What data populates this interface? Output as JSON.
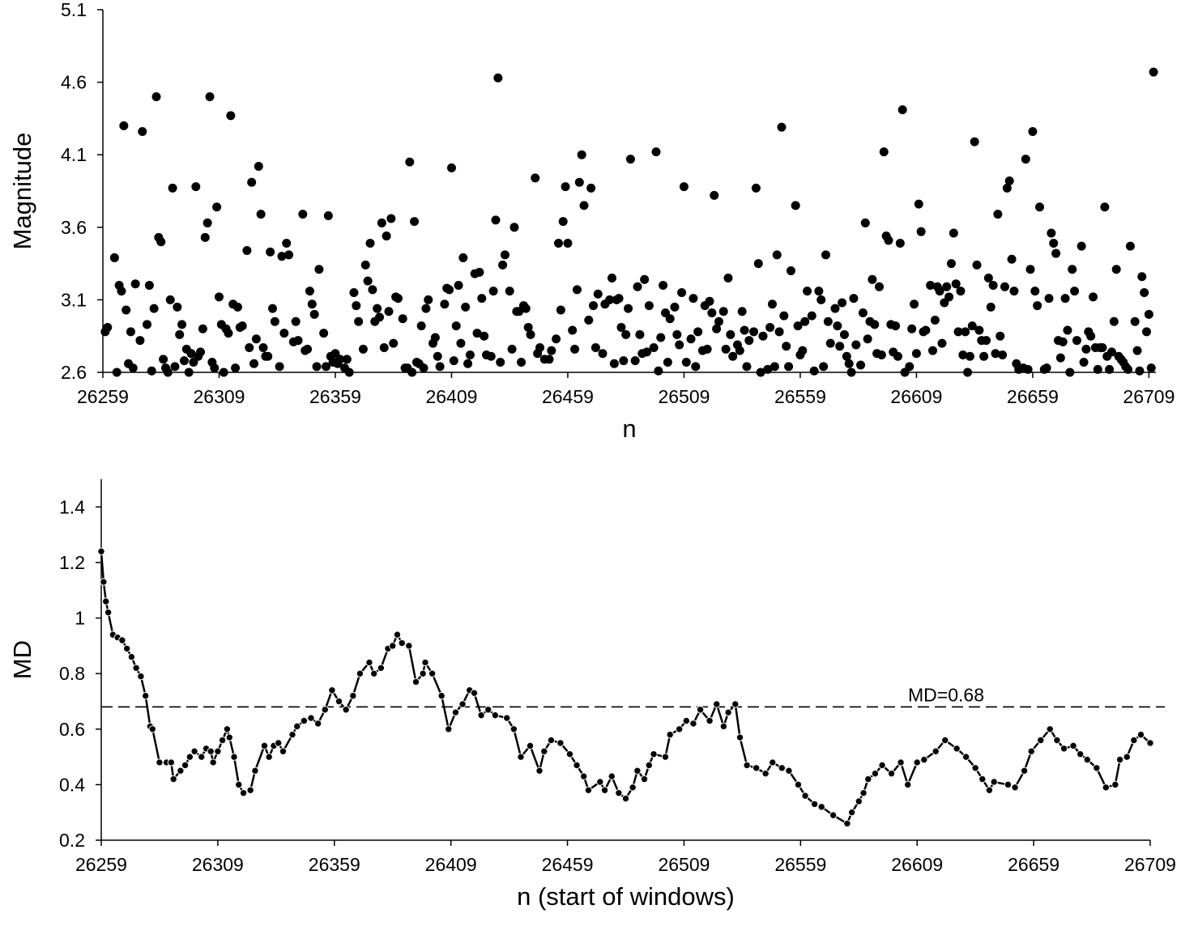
{
  "chart_data": [
    {
      "type": "scatter",
      "xlabel": "n",
      "ylabel": "Magnitude",
      "color": "#000000",
      "xlim": [
        26259,
        26712
      ],
      "ylim": [
        2.6,
        5.1
      ],
      "xticks": [
        26259,
        26309,
        26359,
        26409,
        26459,
        26509,
        26559,
        26609,
        26659,
        26709
      ],
      "yticks": [
        2.6,
        3.1,
        3.6,
        4.1,
        4.6,
        5.1
      ],
      "x": [
        26260,
        26261,
        26264,
        26265,
        26266,
        26267,
        26268,
        26269,
        26270,
        26271,
        26272,
        26273,
        26275,
        26276,
        26278,
        26279,
        26280,
        26281,
        26282,
        26283,
        26284,
        26285,
        26286,
        26287,
        26288,
        26289,
        26290,
        26291,
        26292,
        26293,
        26294,
        26295,
        26296,
        26297,
        26298,
        26299,
        26300,
        26301,
        26302,
        26303,
        26304,
        26305,
        26306,
        26307,
        26308,
        26309,
        26310,
        26311,
        26312,
        26313,
        26314,
        26315,
        26316,
        26317,
        26318,
        26319,
        26321,
        26322,
        26323,
        26324,
        26325,
        26326,
        26327,
        26328,
        26329,
        26330,
        26331,
        26332,
        26333,
        26335,
        26336,
        26337,
        26338,
        26339,
        26341,
        26342,
        26343,
        26345,
        26346,
        26347,
        26348,
        26349,
        26350,
        26351,
        26352,
        26354,
        26355,
        26356,
        26357,
        26358,
        26359,
        26360,
        26361,
        26363,
        26364,
        26365,
        26367,
        26368,
        26369,
        26371,
        26372,
        26373,
        26374,
        26375,
        26376,
        26377,
        26378,
        26379,
        26380,
        26381,
        26382,
        26383,
        26384,
        26385,
        26386,
        26388,
        26389,
        26390,
        26391,
        26392,
        26393,
        26394,
        26395,
        26396,
        26397,
        26398,
        26399,
        26401,
        26402,
        26403,
        26404,
        26406,
        26407,
        26408,
        26409,
        26410,
        26411,
        26412,
        26413,
        26414,
        26415,
        26416,
        26417,
        26419,
        26420,
        26421,
        26422,
        26423,
        26424,
        26426,
        26427,
        26428,
        26429,
        26430,
        26431,
        26432,
        26434,
        26435,
        26436,
        26437,
        26438,
        26439,
        26440,
        26441,
        26442,
        26443,
        26445,
        26446,
        26447,
        26449,
        26451,
        26452,
        26454,
        26455,
        26456,
        26457,
        26458,
        26459,
        26461,
        26462,
        26463,
        26464,
        26465,
        26466,
        26468,
        26469,
        26470,
        26471,
        26472,
        26474,
        26475,
        26477,
        26478,
        26479,
        26480,
        26481,
        26482,
        26483,
        26484,
        26485,
        26486,
        26488,
        26489,
        26490,
        26491,
        26492,
        26493,
        26494,
        26496,
        26497,
        26498,
        26499,
        26500,
        26501,
        26502,
        26503,
        26505,
        26506,
        26507,
        26508,
        26509,
        26510,
        26512,
        26513,
        26514,
        26515,
        26517,
        26518,
        26519,
        26520,
        26521,
        26522,
        26523,
        26524,
        26526,
        26527,
        26528,
        26529,
        26530,
        26532,
        26533,
        26534,
        26535,
        26536,
        26537,
        26539,
        26540,
        26541,
        26542,
        26543,
        26545,
        26546,
        26547,
        26548,
        26549,
        26550,
        26551,
        26552,
        26553,
        26554,
        26555,
        26557,
        26558,
        26559,
        26560,
        26561,
        26562,
        26564,
        26565,
        26567,
        26568,
        26569,
        26570,
        26571,
        26572,
        26574,
        26575,
        26576,
        26577,
        26578,
        26579,
        26580,
        26581,
        26582,
        26583,
        26585,
        26586,
        26587,
        26588,
        26589,
        26590,
        26591,
        26592,
        26593,
        26594,
        26595,
        26596,
        26597,
        26598,
        26599,
        26600,
        26601,
        26602,
        26603,
        26604,
        26606,
        26607,
        26608,
        26609,
        26610,
        26611,
        26612,
        26613,
        26615,
        26616,
        26617,
        26618,
        26619,
        26620,
        26621,
        26622,
        26623,
        26624,
        26625,
        26626,
        26627,
        26628,
        26629,
        26630,
        26631,
        26632,
        26633,
        26634,
        26635,
        26636,
        26637,
        26638,
        26639,
        26640,
        26641,
        26642,
        26643,
        26644,
        26645,
        26646,
        26647,
        26648,
        26649,
        26650,
        26651,
        26652,
        26653,
        26655,
        26656,
        26657,
        26658,
        26659,
        26660,
        26661,
        26662,
        26664,
        26665,
        26666,
        26667,
        26668,
        26669,
        26670,
        26671,
        26672,
        26673,
        26674,
        26675,
        26676,
        26677,
        26678,
        26680,
        26681,
        26682,
        26683,
        26684,
        26685,
        26686,
        26687,
        26688,
        26689,
        26690,
        26691,
        26692,
        26693,
        26694,
        26695,
        26696,
        26697,
        26698,
        26699,
        26700,
        26701,
        26703,
        26704,
        26705,
        26706,
        26707,
        26708,
        26709,
        26710,
        26711
      ],
      "y": [
        2.88,
        2.91,
        3.39,
        2.6,
        3.2,
        3.16,
        4.3,
        3.03,
        2.66,
        2.88,
        2.63,
        3.21,
        2.82,
        4.26,
        2.93,
        3.2,
        2.61,
        3.04,
        4.5,
        3.53,
        3.5,
        2.69,
        2.63,
        2.6,
        3.1,
        3.87,
        2.64,
        3.05,
        2.86,
        2.93,
        2.68,
        2.76,
        2.6,
        2.73,
        2.67,
        3.88,
        2.71,
        2.74,
        2.9,
        3.53,
        3.63,
        4.5,
        2.67,
        2.63,
        3.74,
        3.12,
        2.93,
        2.6,
        2.9,
        2.87,
        4.37,
        3.07,
        2.63,
        3.05,
        2.91,
        2.92,
        3.44,
        2.77,
        3.91,
        2.66,
        2.83,
        4.02,
        3.69,
        2.77,
        2.71,
        2.71,
        3.43,
        3.04,
        2.95,
        2.64,
        3.4,
        2.87,
        3.49,
        3.41,
        2.81,
        2.95,
        2.82,
        3.69,
        2.75,
        2.76,
        3.16,
        3.07,
        3.0,
        2.64,
        3.31,
        2.87,
        2.64,
        3.68,
        2.71,
        2.67,
        2.73,
        2.66,
        2.69,
        2.63,
        2.69,
        2.6,
        3.15,
        3.06,
        2.95,
        2.76,
        3.34,
        3.23,
        3.49,
        3.17,
        2.95,
        3.04,
        2.98,
        3.63,
        2.77,
        3.54,
        3.02,
        3.66,
        2.8,
        3.12,
        3.11,
        2.97,
        2.63,
        2.63,
        4.05,
        2.6,
        3.64,
        2.67,
        2.66,
        2.92,
        2.63,
        3.04,
        3.1,
        2.8,
        2.84,
        2.71,
        2.64,
        3.07,
        3.18,
        3.17,
        4.01,
        2.68,
        2.92,
        3.2,
        2.8,
        3.39,
        3.05,
        2.66,
        2.72,
        3.28,
        2.87,
        3.29,
        3.11,
        2.85,
        2.72,
        2.71,
        3.16,
        3.65,
        4.63,
        2.67,
        3.34,
        3.41,
        3.16,
        2.76,
        3.6,
        3.02,
        3.02,
        2.67,
        3.06,
        3.04,
        2.91,
        2.86,
        3.94,
        2.73,
        2.77,
        2.69,
        2.69,
        2.75,
        2.83,
        3.49,
        3.03,
        3.64,
        3.88,
        3.49,
        2.89,
        2.76,
        3.17,
        3.91,
        4.1,
        3.75,
        2.96,
        3.87,
        3.06,
        2.77,
        3.14,
        2.73,
        3.07,
        3.1,
        3.25,
        2.66,
        3.1,
        3.11,
        2.91,
        2.68,
        2.86,
        3.04,
        4.07,
        2.68,
        3.19,
        2.86,
        2.73,
        3.24,
        2.74,
        3.06,
        2.77,
        4.12,
        2.61,
        2.84,
        3.2,
        3.01,
        2.67,
        2.97,
        3.05,
        2.86,
        2.79,
        3.15,
        3.88,
        2.67,
        2.83,
        3.11,
        2.64,
        2.88,
        2.75,
        3.06,
        2.76,
        3.09,
        3.01,
        3.82,
        2.9,
        2.95,
        3.02,
        2.76,
        3.25,
        2.86,
        2.71,
        2.79,
        2.75,
        3.02,
        2.89,
        2.64,
        2.82,
        2.88,
        3.87,
        3.35,
        2.6,
        2.85,
        2.62,
        2.91,
        3.07,
        2.64,
        3.41,
        2.88,
        4.29,
        2.99,
        2.78,
        2.64,
        3.3,
        3.75,
        2.92,
        2.72,
        2.75,
        2.95,
        3.16,
        2.99,
        2.61,
        3.16,
        3.1,
        2.64,
        3.41,
        2.95,
        2.8,
        3.04,
        2.92,
        2.78,
        3.08,
        2.86,
        2.71,
        2.66,
        2.6,
        3.11,
        2.79,
        2.65,
        3.01,
        3.63,
        2.83,
        2.95,
        3.24,
        2.93,
        2.73,
        3.19,
        2.72,
        4.12,
        3.54,
        3.51,
        2.93,
        2.74,
        2.92,
        2.71,
        3.49,
        4.41,
        2.6,
        2.64,
        2.9,
        3.07,
        2.73,
        3.76,
        3.57,
        2.88,
        2.89,
        3.2,
        2.75,
        2.96,
        3.19,
        3.16,
        2.8,
        3.08,
        3.19,
        3.12,
        3.35,
        3.56,
        3.21,
        2.88,
        3.16,
        2.72,
        2.88,
        2.6,
        2.71,
        2.92,
        4.19,
        3.34,
        2.89,
        2.82,
        2.71,
        2.82,
        3.25,
        3.05,
        3.2,
        2.73,
        3.69,
        2.85,
        2.72,
        3.19,
        3.87,
        3.92,
        3.38,
        3.16,
        2.66,
        2.62,
        2.63,
        4.07,
        2.62,
        3.31,
        4.26,
        3.16,
        3.06,
        3.74,
        2.62,
        2.63,
        3.11,
        3.56,
        3.49,
        3.42,
        2.82,
        2.7,
        2.81,
        3.11,
        2.89,
        2.6,
        3.31,
        3.16,
        2.82,
        3.47,
        2.67,
        2.76,
        2.88,
        2.85,
        3.12,
        2.77,
        2.62,
        2.77,
        2.77,
        3.74,
        2.71,
        2.62,
        2.74,
        2.95,
        3.31,
        2.71,
        2.69,
        2.67,
        2.64,
        2.62,
        3.47,
        2.95,
        2.75,
        2.61,
        3.26,
        3.15,
        2.88,
        3.0,
        2.63,
        4.67
      ]
    },
    {
      "type": "line",
      "xlabel": "n (start of windows)",
      "ylabel": "MD",
      "color": "#000000",
      "xlim": [
        26259,
        26709
      ],
      "ylim": [
        0.2,
        1.5
      ],
      "xticks": [
        26259,
        26309,
        26359,
        26409,
        26459,
        26509,
        26559,
        26609,
        26659,
        26709
      ],
      "yticks": [
        0.2,
        0.4,
        0.6,
        0.8,
        1,
        1.2,
        1.4
      ],
      "hline": {
        "value": 0.68,
        "label": "MD=0.68"
      },
      "x": [
        26259,
        26260,
        26261,
        26262,
        26264,
        26266,
        26268,
        26270,
        26272,
        26274,
        26276,
        26278,
        26280,
        26281,
        26284,
        26287,
        26289,
        26290,
        26293,
        26295,
        26297,
        26299,
        26302,
        26304,
        26306,
        26307,
        26309,
        26311,
        26313,
        26314,
        26316,
        26318,
        26320,
        26323,
        26325,
        26329,
        26331,
        26333,
        26335,
        26337,
        26341,
        26343,
        26346,
        26349,
        26352,
        26355,
        26358,
        26361,
        26364,
        26367,
        26370,
        26374,
        26376,
        26379,
        26382,
        26384,
        26386,
        26388,
        26391,
        26394,
        26397,
        26398,
        26401,
        26405,
        26408,
        26411,
        26414,
        26417,
        26419,
        26422,
        26425,
        26428,
        26433,
        26436,
        26439,
        26443,
        26447,
        26449,
        26452,
        26456,
        26460,
        26463,
        26466,
        26468,
        26473,
        26475,
        26478,
        26481,
        26484,
        26487,
        26489,
        26492,
        26494,
        26496,
        26501,
        26503,
        26507,
        26510,
        26513,
        26516,
        26520,
        26523,
        26526,
        26528,
        26531,
        26533,
        26536,
        26540,
        26544,
        26547,
        26551,
        26554,
        26558,
        26561,
        26565,
        26568,
        26573,
        26579,
        26581,
        26584,
        26586,
        26588,
        26591,
        26594,
        26598,
        26602,
        26605,
        26609,
        26612,
        26617,
        26621,
        26626,
        26630,
        26634,
        26637,
        26640,
        26642,
        26648,
        26651,
        26655,
        26658,
        26662,
        26666,
        26669,
        26672,
        26676,
        26679,
        26682,
        26686,
        26690,
        26694,
        26696,
        26699,
        26702,
        26705,
        26709
      ],
      "values": [
        1.24,
        1.13,
        1.06,
        1.02,
        0.94,
        0.93,
        0.92,
        0.89,
        0.86,
        0.82,
        0.79,
        0.72,
        0.61,
        0.6,
        0.48,
        0.48,
        0.48,
        0.42,
        0.45,
        0.47,
        0.5,
        0.52,
        0.5,
        0.53,
        0.52,
        0.48,
        0.52,
        0.56,
        0.6,
        0.57,
        0.5,
        0.4,
        0.37,
        0.38,
        0.45,
        0.54,
        0.5,
        0.54,
        0.55,
        0.52,
        0.58,
        0.61,
        0.63,
        0.64,
        0.62,
        0.67,
        0.74,
        0.7,
        0.67,
        0.72,
        0.8,
        0.84,
        0.8,
        0.82,
        0.89,
        0.9,
        0.94,
        0.91,
        0.9,
        0.77,
        0.8,
        0.84,
        0.8,
        0.72,
        0.6,
        0.66,
        0.69,
        0.74,
        0.73,
        0.65,
        0.67,
        0.65,
        0.64,
        0.6,
        0.5,
        0.54,
        0.45,
        0.52,
        0.56,
        0.55,
        0.51,
        0.47,
        0.43,
        0.38,
        0.41,
        0.38,
        0.43,
        0.37,
        0.35,
        0.39,
        0.45,
        0.42,
        0.47,
        0.51,
        0.5,
        0.58,
        0.6,
        0.63,
        0.62,
        0.67,
        0.63,
        0.69,
        0.61,
        0.66,
        0.69,
        0.57,
        0.47,
        0.46,
        0.44,
        0.48,
        0.46,
        0.45,
        0.4,
        0.36,
        0.33,
        0.32,
        0.29,
        0.26,
        0.3,
        0.34,
        0.37,
        0.42,
        0.44,
        0.47,
        0.44,
        0.48,
        0.4,
        0.48,
        0.49,
        0.52,
        0.56,
        0.53,
        0.5,
        0.46,
        0.42,
        0.38,
        0.41,
        0.4,
        0.39,
        0.45,
        0.52,
        0.56,
        0.6,
        0.56,
        0.53,
        0.54,
        0.51,
        0.49,
        0.46,
        0.39,
        0.4,
        0.49,
        0.5,
        0.56,
        0.58,
        0.55
      ]
    }
  ]
}
